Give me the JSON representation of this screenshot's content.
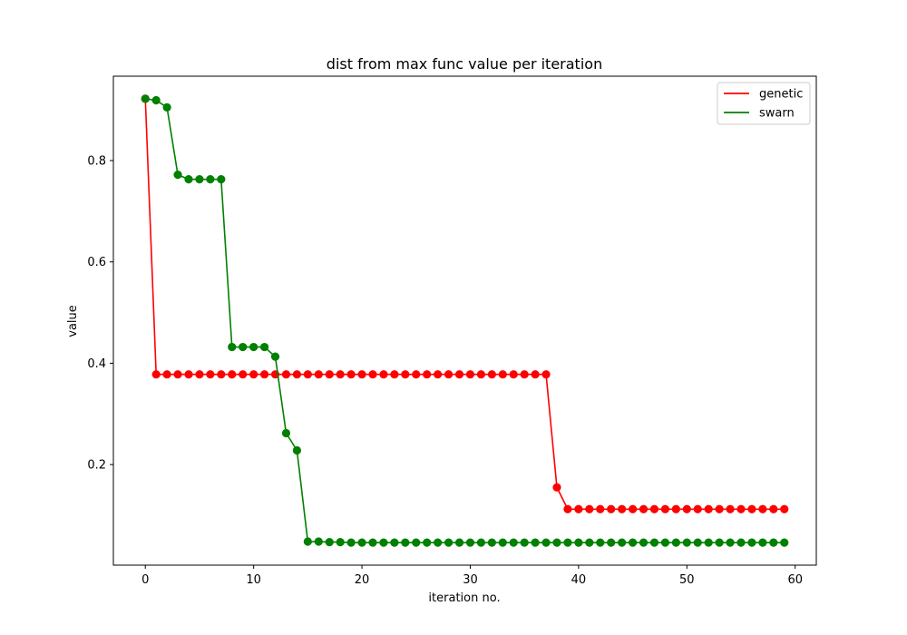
{
  "chart_data": {
    "type": "line",
    "title": "dist from max func value per iteration",
    "xlabel": "iteration no.",
    "ylabel": "value",
    "xlim": [
      -2.95,
      61.95
    ],
    "ylim": [
      0.0015,
      0.9665
    ],
    "xticks": [
      0,
      10,
      20,
      30,
      40,
      50,
      60
    ],
    "yticks": [
      0.2,
      0.4,
      0.6,
      0.8
    ],
    "ytick_labels": [
      "0.2",
      "0.4",
      "0.6",
      "0.8"
    ],
    "grid": false,
    "legend_position": "top-right",
    "series": [
      {
        "name": "genetic",
        "color": "#ff0000",
        "x": [
          0,
          1,
          2,
          3,
          4,
          5,
          6,
          7,
          8,
          9,
          10,
          11,
          12,
          13,
          14,
          15,
          16,
          17,
          18,
          19,
          20,
          21,
          22,
          23,
          24,
          25,
          26,
          27,
          28,
          29,
          30,
          31,
          32,
          33,
          34,
          35,
          36,
          37,
          38,
          39,
          40,
          41,
          42,
          43,
          44,
          45,
          46,
          47,
          48,
          49,
          50,
          51,
          52,
          53,
          54,
          55,
          56,
          57,
          58,
          59
        ],
        "values": [
          0.922,
          0.378,
          0.378,
          0.378,
          0.378,
          0.378,
          0.378,
          0.378,
          0.378,
          0.378,
          0.378,
          0.378,
          0.378,
          0.378,
          0.378,
          0.378,
          0.378,
          0.378,
          0.378,
          0.378,
          0.378,
          0.378,
          0.378,
          0.378,
          0.378,
          0.378,
          0.378,
          0.378,
          0.378,
          0.378,
          0.378,
          0.378,
          0.378,
          0.378,
          0.378,
          0.378,
          0.378,
          0.378,
          0.155,
          0.112,
          0.112,
          0.112,
          0.112,
          0.112,
          0.112,
          0.112,
          0.112,
          0.112,
          0.112,
          0.112,
          0.112,
          0.112,
          0.112,
          0.112,
          0.112,
          0.112,
          0.112,
          0.112,
          0.112,
          0.112
        ]
      },
      {
        "name": "swarn",
        "color": "#008000",
        "x": [
          0,
          1,
          2,
          3,
          4,
          5,
          6,
          7,
          8,
          9,
          10,
          11,
          12,
          13,
          14,
          15,
          16,
          17,
          18,
          19,
          20,
          21,
          22,
          23,
          24,
          25,
          26,
          27,
          28,
          29,
          30,
          31,
          32,
          33,
          34,
          35,
          36,
          37,
          38,
          39,
          40,
          41,
          42,
          43,
          44,
          45,
          46,
          47,
          48,
          49,
          50,
          51,
          52,
          53,
          54,
          55,
          56,
          57,
          58,
          59
        ],
        "values": [
          0.922,
          0.919,
          0.905,
          0.772,
          0.763,
          0.763,
          0.763,
          0.763,
          0.432,
          0.432,
          0.432,
          0.432,
          0.413,
          0.262,
          0.228,
          0.048,
          0.048,
          0.047,
          0.047,
          0.046,
          0.046,
          0.046,
          0.046,
          0.046,
          0.046,
          0.046,
          0.046,
          0.046,
          0.046,
          0.046,
          0.046,
          0.046,
          0.046,
          0.046,
          0.046,
          0.046,
          0.046,
          0.046,
          0.046,
          0.046,
          0.046,
          0.046,
          0.046,
          0.046,
          0.046,
          0.046,
          0.046,
          0.046,
          0.046,
          0.046,
          0.046,
          0.046,
          0.046,
          0.046,
          0.046,
          0.046,
          0.046,
          0.046,
          0.046,
          0.046
        ]
      }
    ]
  }
}
